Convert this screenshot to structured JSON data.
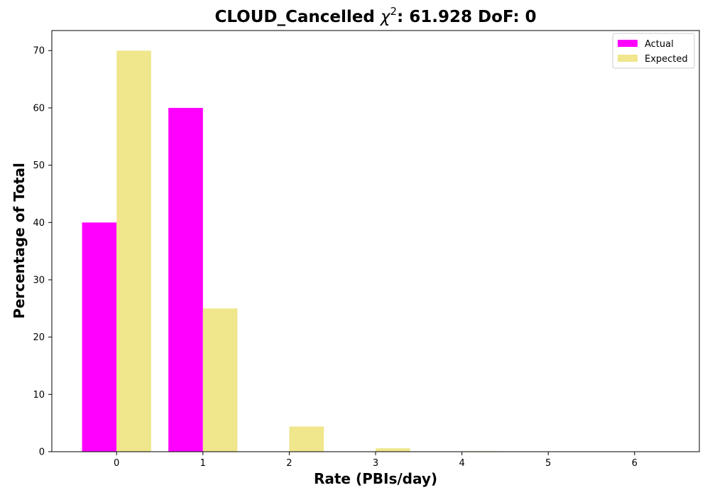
{
  "chart_data": {
    "type": "bar",
    "title": {
      "prefix": "CLOUD_Cancelled ",
      "chi_symbol": "χ",
      "chi_superscript": "2",
      "suffix": ": 61.928 DoF: 0"
    },
    "xlabel": "Rate (PBIs/day)",
    "ylabel": "Percentage of Total",
    "categories": [
      "0",
      "1",
      "2",
      "3",
      "4",
      "5",
      "6"
    ],
    "series": [
      {
        "name": "Actual",
        "color": "#ff00ff",
        "values": [
          40,
          60,
          0,
          0,
          0,
          0,
          0
        ]
      },
      {
        "name": "Expected",
        "color": "#f0e68c",
        "values": [
          70,
          25,
          4.4,
          0.6,
          0.1,
          0.0,
          0.0
        ]
      }
    ],
    "xlim": [
      -0.75,
      6.75
    ],
    "ylim": [
      0,
      73.5
    ],
    "yticks": [
      0,
      10,
      20,
      30,
      40,
      50,
      60,
      70
    ],
    "grid": false,
    "legend_position": "top-right"
  }
}
